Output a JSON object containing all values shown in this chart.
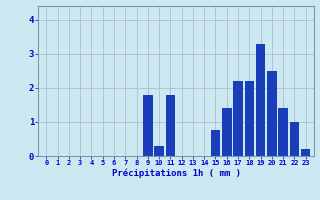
{
  "hours": [
    0,
    1,
    2,
    3,
    4,
    5,
    6,
    7,
    8,
    9,
    10,
    11,
    12,
    13,
    14,
    15,
    16,
    17,
    18,
    19,
    20,
    21,
    22,
    23
  ],
  "values": [
    0,
    0,
    0,
    0,
    0,
    0,
    0,
    0,
    0,
    1.8,
    0.3,
    1.8,
    0,
    0,
    0,
    0.75,
    1.4,
    2.2,
    2.2,
    3.3,
    2.5,
    1.4,
    1.0,
    0.2
  ],
  "bar_color": "#1a3eba",
  "background_color": "#cce8f0",
  "grid_color": "#aaaacc",
  "xlabel": "Précipitations 1h ( mm )",
  "xlabel_color": "#0000cc",
  "tick_color": "#0000cc",
  "ylim": [
    0,
    4.4
  ],
  "yticks": [
    0,
    1,
    2,
    3,
    4
  ]
}
